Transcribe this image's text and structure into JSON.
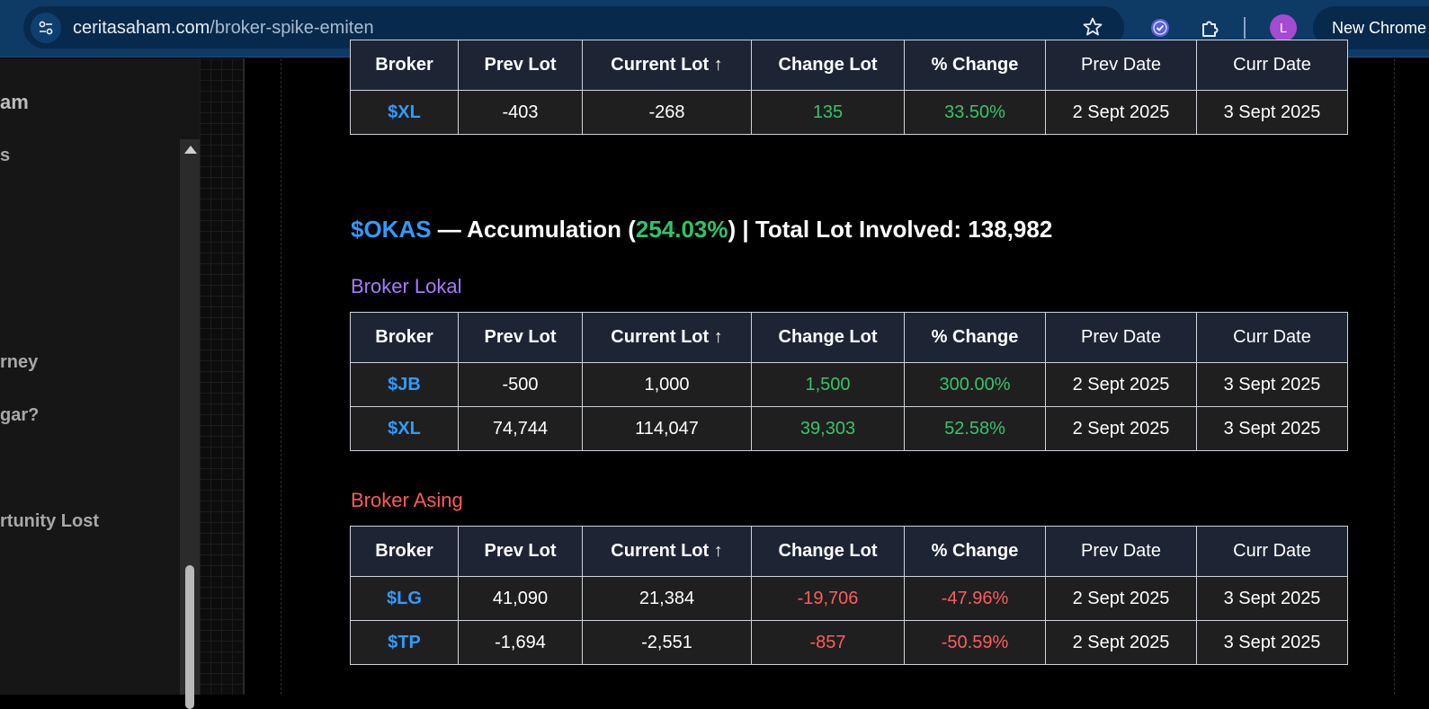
{
  "browser": {
    "url_domain": "ceritasaham.com",
    "url_path": "/broker-spike-emiten",
    "avatar_letter": "L",
    "new_chrome_label": "New Chrome"
  },
  "sidebar": {
    "items": [
      "am",
      "s",
      "rney",
      "gar?",
      "rtunity Lost"
    ]
  },
  "columns": [
    "Broker",
    "Prev Lot",
    "Current Lot ↑",
    "Change Lot",
    "% Change",
    "Prev Date",
    "Curr Date"
  ],
  "prev_table": {
    "rows": [
      {
        "broker": "$XL",
        "prev_lot": "-403",
        "current_lot": "-268",
        "change_lot": "135",
        "pct_change": "33.50%",
        "prev_date": "2 Sept 2025",
        "curr_date": "3 Sept 2025",
        "trend": "pos"
      }
    ]
  },
  "okas": {
    "ticker": "$OKAS",
    "dash_text": " — Accumulation (",
    "pct": "254.03%",
    "tail_text": ") | Total Lot Involved: 138,982",
    "lokal": {
      "label": "Broker Lokal",
      "rows": [
        {
          "broker": "$JB",
          "prev_lot": "-500",
          "current_lot": "1,000",
          "change_lot": "1,500",
          "pct_change": "300.00%",
          "prev_date": "2 Sept 2025",
          "curr_date": "3 Sept 2025",
          "trend": "pos"
        },
        {
          "broker": "$XL",
          "prev_lot": "74,744",
          "current_lot": "114,047",
          "change_lot": "39,303",
          "pct_change": "52.58%",
          "prev_date": "2 Sept 2025",
          "curr_date": "3 Sept 2025",
          "trend": "pos"
        }
      ]
    },
    "asing": {
      "label": "Broker Asing",
      "rows": [
        {
          "broker": "$LG",
          "prev_lot": "41,090",
          "current_lot": "21,384",
          "change_lot": "-19,706",
          "pct_change": "-47.96%",
          "prev_date": "2 Sept 2025",
          "curr_date": "3 Sept 2025",
          "trend": "neg"
        },
        {
          "broker": "$TP",
          "prev_lot": "-1,694",
          "current_lot": "-2,551",
          "change_lot": "-857",
          "pct_change": "-50.59%",
          "prev_date": "2 Sept 2025",
          "curr_date": "3 Sept 2025",
          "trend": "neg"
        }
      ]
    }
  },
  "colors": {
    "ticker_blue": "#2f9bff",
    "positive_green": "#36c46c",
    "negative_red": "#ff5c5c",
    "lokal_purple": "#a77bff",
    "asing_red": "#ff5a5a",
    "header_bg": "#1d2535"
  }
}
